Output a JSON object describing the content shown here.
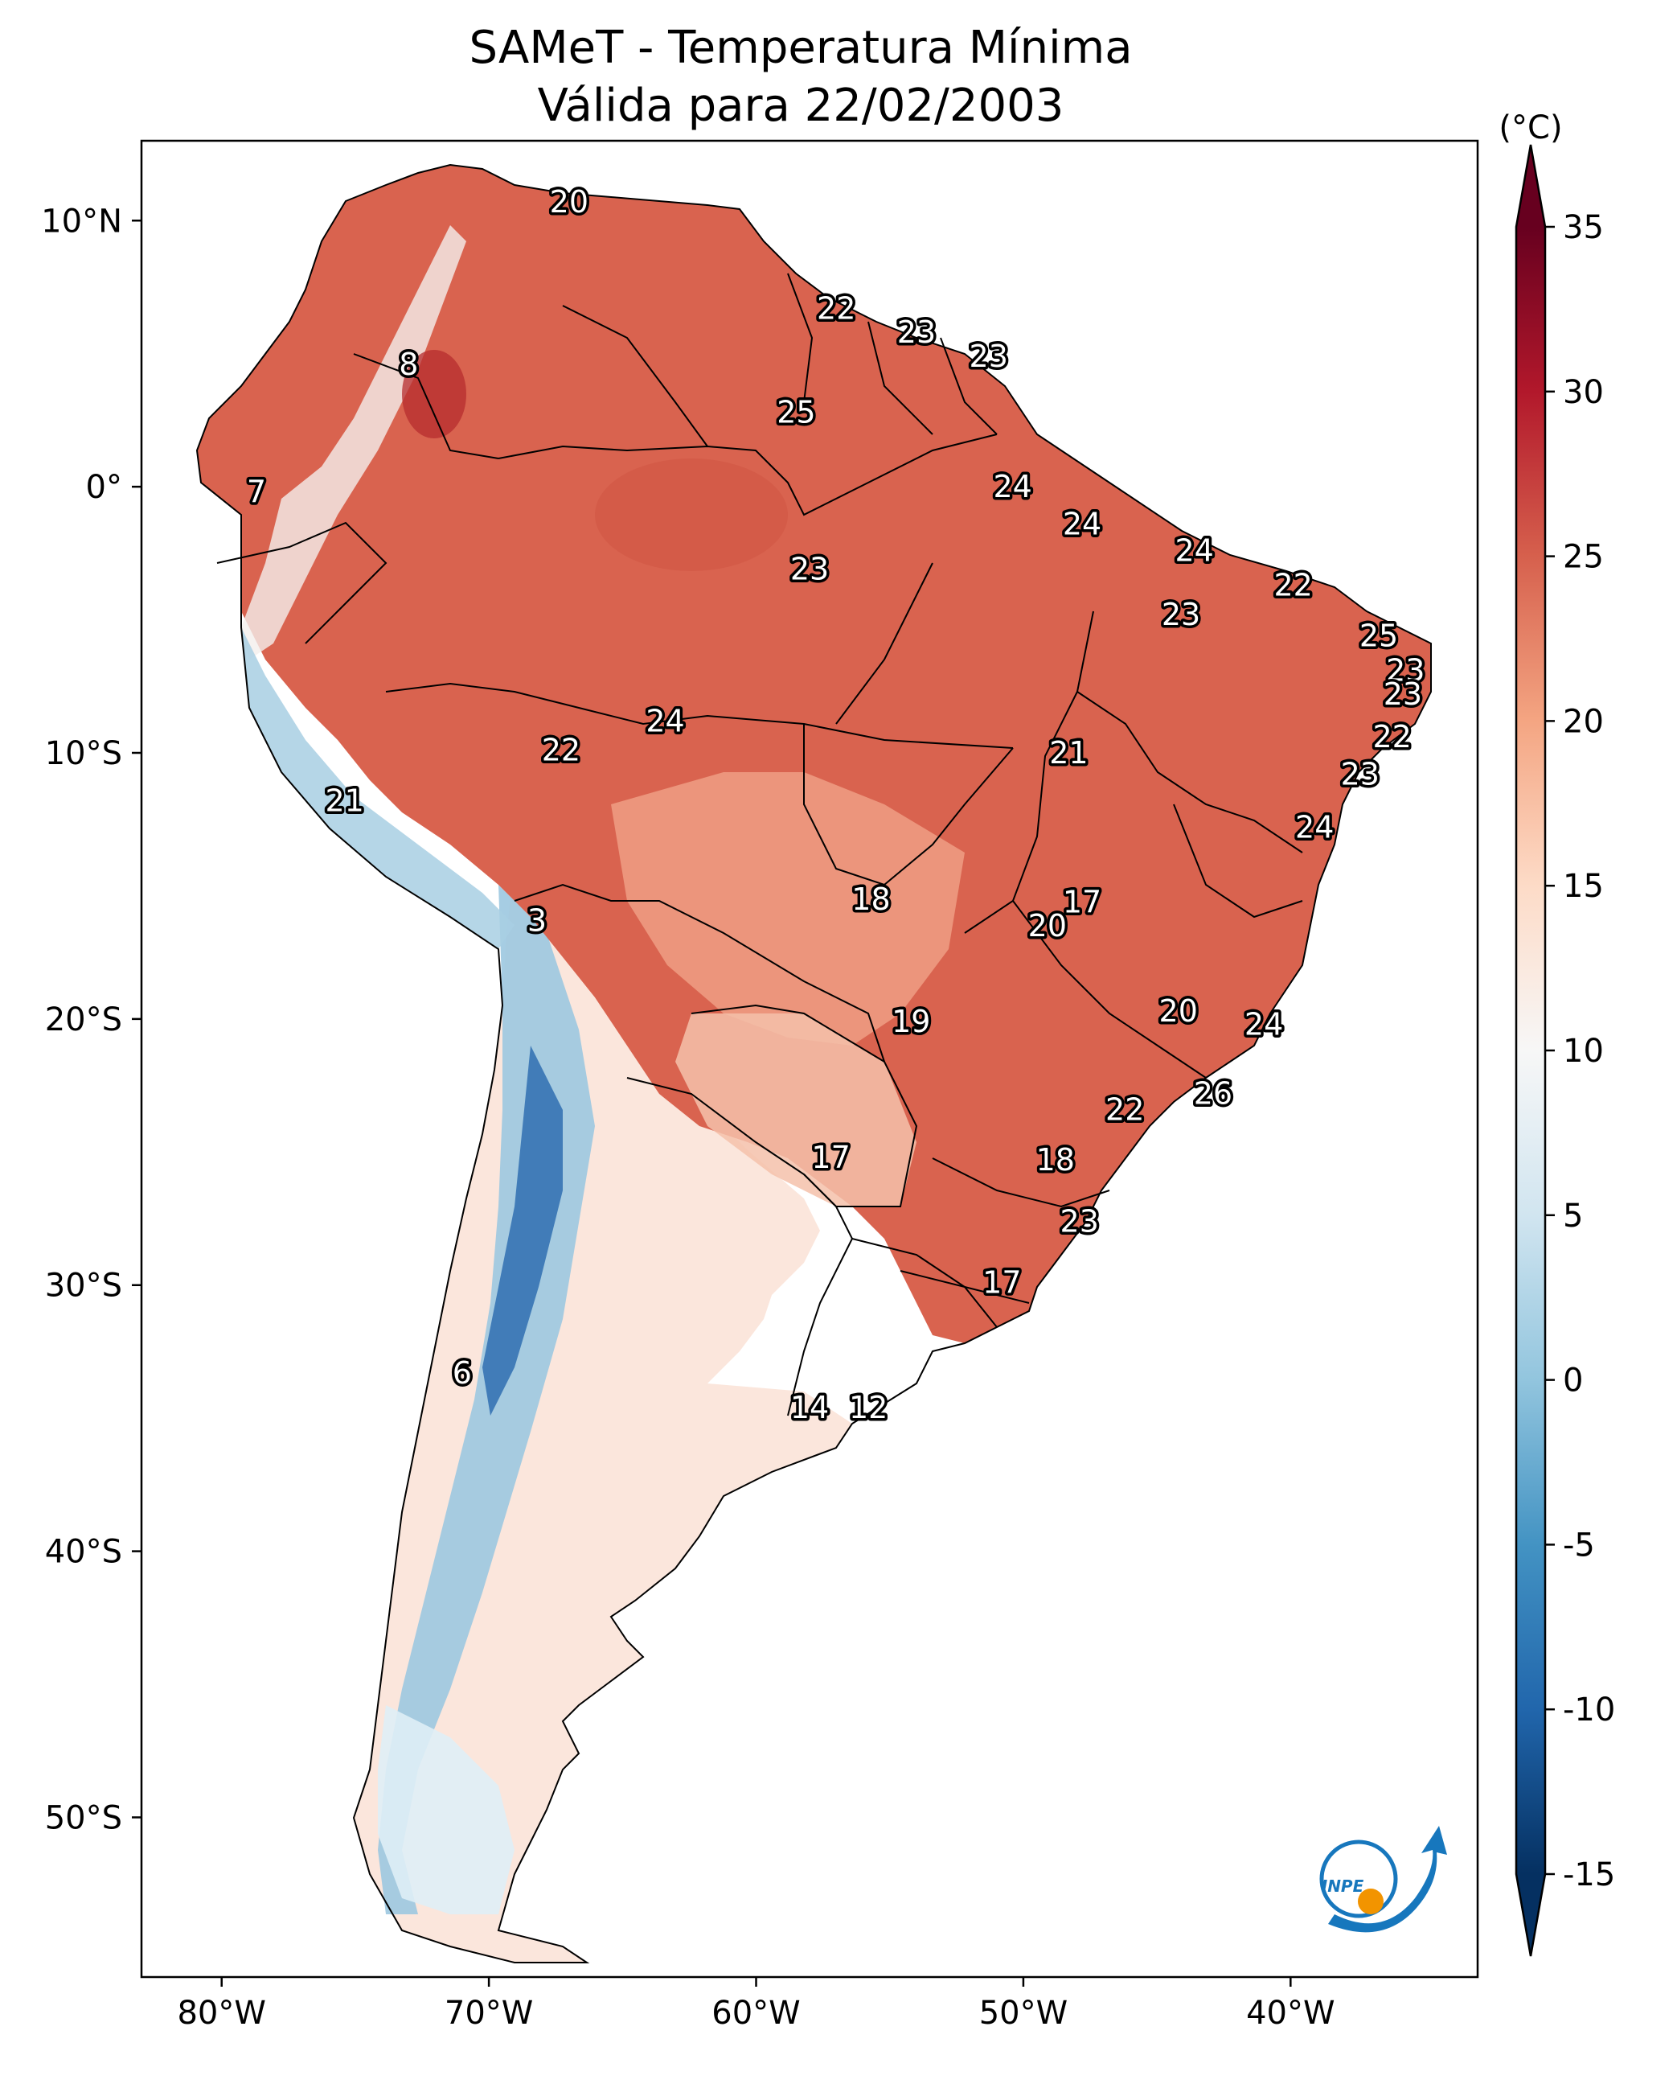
{
  "title": {
    "line1": "SAMeT - Temperatura Mínima",
    "line2": "Válida para 22/02/2003"
  },
  "map": {
    "lon_range": [
      -83,
      -33
    ],
    "lat_range": [
      -56,
      13
    ],
    "lon_ticks": [
      {
        "value": -80,
        "label": "80°W"
      },
      {
        "value": -70,
        "label": "70°W"
      },
      {
        "value": -60,
        "label": "60°W"
      },
      {
        "value": -50,
        "label": "50°W"
      },
      {
        "value": -40,
        "label": "40°W"
      }
    ],
    "lat_ticks": [
      {
        "value": 10,
        "label": "10°N"
      },
      {
        "value": 0,
        "label": "0°"
      },
      {
        "value": -10,
        "label": "10°S"
      },
      {
        "value": -20,
        "label": "20°S"
      },
      {
        "value": -30,
        "label": "30°S"
      },
      {
        "value": -40,
        "label": "40°S"
      },
      {
        "value": -50,
        "label": "50°S"
      }
    ],
    "point_labels": [
      {
        "lon": -67.0,
        "lat": 10.7,
        "text": "20"
      },
      {
        "lon": -57.0,
        "lat": 6.7,
        "text": "22"
      },
      {
        "lon": -54.0,
        "lat": 5.8,
        "text": "23"
      },
      {
        "lon": -51.3,
        "lat": 4.9,
        "text": "23"
      },
      {
        "lon": -73.0,
        "lat": 4.6,
        "text": "8"
      },
      {
        "lon": -58.5,
        "lat": 2.8,
        "text": "25"
      },
      {
        "lon": -78.7,
        "lat": -0.2,
        "text": "7"
      },
      {
        "lon": -50.4,
        "lat": 0.0,
        "text": "24"
      },
      {
        "lon": -47.8,
        "lat": -1.4,
        "text": "24"
      },
      {
        "lon": -43.6,
        "lat": -2.4,
        "text": "24"
      },
      {
        "lon": -58.0,
        "lat": -3.1,
        "text": "23"
      },
      {
        "lon": -39.9,
        "lat": -3.7,
        "text": "22"
      },
      {
        "lon": -44.1,
        "lat": -4.8,
        "text": "23"
      },
      {
        "lon": -36.7,
        "lat": -5.6,
        "text": "25"
      },
      {
        "lon": -35.7,
        "lat": -6.9,
        "text": "23"
      },
      {
        "lon": -35.8,
        "lat": -7.8,
        "text": "23"
      },
      {
        "lon": -36.2,
        "lat": -9.4,
        "text": "22"
      },
      {
        "lon": -63.4,
        "lat": -8.8,
        "text": "24"
      },
      {
        "lon": -67.3,
        "lat": -9.9,
        "text": "22"
      },
      {
        "lon": -48.3,
        "lat": -10.0,
        "text": "21"
      },
      {
        "lon": -37.4,
        "lat": -10.8,
        "text": "23"
      },
      {
        "lon": -75.4,
        "lat": -11.8,
        "text": "21"
      },
      {
        "lon": -39.1,
        "lat": -12.8,
        "text": "24"
      },
      {
        "lon": -55.7,
        "lat": -15.5,
        "text": "18"
      },
      {
        "lon": -47.8,
        "lat": -15.6,
        "text": "17"
      },
      {
        "lon": -49.1,
        "lat": -16.5,
        "text": "20"
      },
      {
        "lon": -68.2,
        "lat": -16.3,
        "text": "3"
      },
      {
        "lon": -44.2,
        "lat": -19.7,
        "text": "20"
      },
      {
        "lon": -54.2,
        "lat": -20.1,
        "text": "19"
      },
      {
        "lon": -41.0,
        "lat": -20.2,
        "text": "24"
      },
      {
        "lon": -42.9,
        "lat": -22.8,
        "text": "26"
      },
      {
        "lon": -46.2,
        "lat": -23.4,
        "text": "22"
      },
      {
        "lon": -57.2,
        "lat": -25.2,
        "text": "17"
      },
      {
        "lon": -48.8,
        "lat": -25.3,
        "text": "18"
      },
      {
        "lon": -47.9,
        "lat": -27.6,
        "text": "23"
      },
      {
        "lon": -50.8,
        "lat": -29.9,
        "text": "17"
      },
      {
        "lon": -71.0,
        "lat": -33.3,
        "text": "6"
      },
      {
        "lon": -58.0,
        "lat": -34.6,
        "text": "14"
      },
      {
        "lon": -55.8,
        "lat": -34.6,
        "text": "12"
      }
    ]
  },
  "colorbar": {
    "unit": "(°C)",
    "min": -15,
    "max": 35,
    "ticks": [
      {
        "value": 35,
        "label": "35"
      },
      {
        "value": 30,
        "label": "30"
      },
      {
        "value": 25,
        "label": "25"
      },
      {
        "value": 20,
        "label": "20"
      },
      {
        "value": 15,
        "label": "15"
      },
      {
        "value": 10,
        "label": "10"
      },
      {
        "value": 5,
        "label": "5"
      },
      {
        "value": 0,
        "label": "0"
      },
      {
        "value": -5,
        "label": "-5"
      },
      {
        "value": -10,
        "label": "-10"
      },
      {
        "value": -15,
        "label": "-15"
      }
    ],
    "colors": [
      "#053061",
      "#2166ac",
      "#4393c3",
      "#92c5de",
      "#d1e5f0",
      "#f7f7f7",
      "#fddbc7",
      "#f4a582",
      "#d6604d",
      "#b2182b",
      "#67001f"
    ]
  },
  "logo": {
    "text": "INPE",
    "blue": "#1777bd",
    "orange": "#f29400"
  }
}
